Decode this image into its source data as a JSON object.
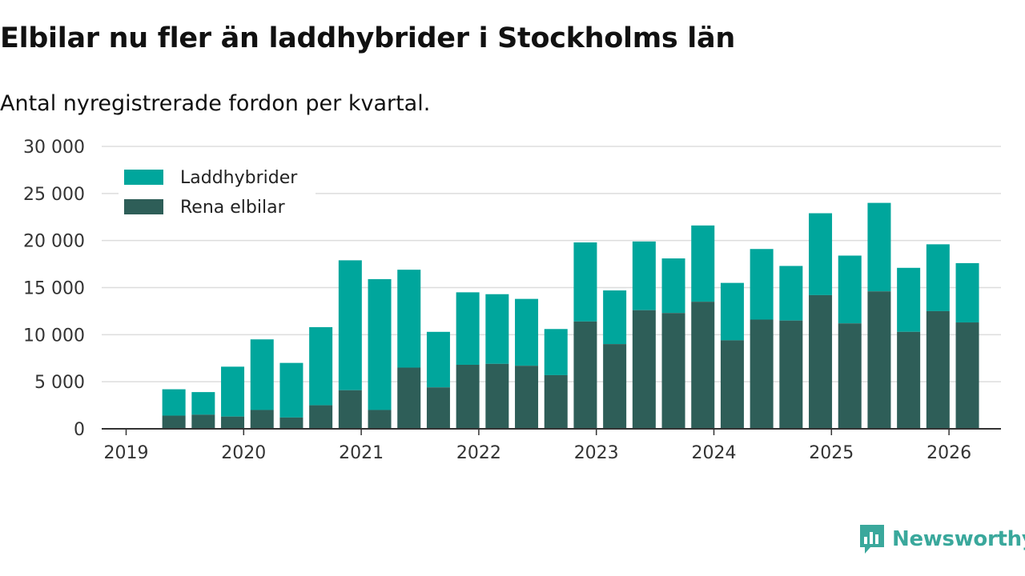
{
  "header": {
    "title": "Elbilar nu fler än laddhybrider i Stockholms län",
    "subtitle": "Antal nyregistrerade fordon per kvartal."
  },
  "brand": {
    "name": "Newsworthy",
    "icon": "newsworthy-logo-icon"
  },
  "colors": {
    "phev": "#00a69c",
    "bev": "#2e5e58",
    "grid": "#dddddd",
    "axis": "#333333",
    "brand": "#3aa89c"
  },
  "chart_data": {
    "type": "bar",
    "stacked": true,
    "xlabel": "",
    "ylabel": "",
    "ylim": [
      0,
      30000
    ],
    "yticks": [
      0,
      5000,
      10000,
      15000,
      20000,
      25000,
      30000
    ],
    "ytick_labels": [
      "0",
      "5 000",
      "10 000",
      "15 000",
      "20 000",
      "25 000",
      "30 000"
    ],
    "xticks": [
      "2019",
      "2020",
      "2021",
      "2022",
      "2023",
      "2024",
      "2025",
      "2026"
    ],
    "xlim_quarters": [
      0,
      29
    ],
    "grid": true,
    "legend_position": "top-left",
    "categories": [
      "2019 Q2",
      "2019 Q3",
      "2019 Q4",
      "2020 Q1",
      "2020 Q2",
      "2020 Q3",
      "2020 Q4",
      "2021 Q1",
      "2021 Q2",
      "2021 Q3",
      "2021 Q4",
      "2022 Q1",
      "2022 Q2",
      "2022 Q3",
      "2022 Q4",
      "2023 Q1",
      "2023 Q2",
      "2023 Q3",
      "2023 Q4",
      "2024 Q1",
      "2024 Q2",
      "2024 Q3",
      "2024 Q4",
      "2025 Q1",
      "2025 Q2",
      "2025 Q3",
      "2025 Q4",
      "2026 Q1"
    ],
    "series": [
      {
        "name": "Rena elbilar",
        "values": [
          1400,
          1500,
          1300,
          2000,
          1200,
          2500,
          4100,
          2000,
          6500,
          4400,
          6800,
          6900,
          6700,
          5700,
          11400,
          9000,
          12600,
          12300,
          13500,
          9400,
          11600,
          11500,
          14200,
          11200,
          14600,
          10300,
          12500,
          11300
        ]
      },
      {
        "name": "Laddhybrider",
        "values": [
          2800,
          2400,
          5300,
          7500,
          5800,
          8300,
          13800,
          13900,
          10400,
          5900,
          7700,
          7400,
          7100,
          4900,
          8400,
          5700,
          7300,
          5800,
          8100,
          6100,
          7500,
          5800,
          8700,
          7200,
          9400,
          6800,
          7100,
          6300
        ]
      }
    ]
  }
}
